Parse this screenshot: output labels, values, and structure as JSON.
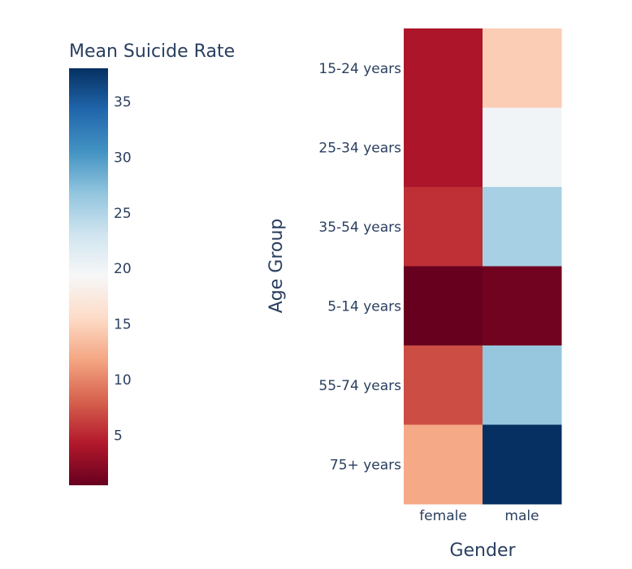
{
  "chart_data": {
    "type": "heatmap",
    "x": [
      "female",
      "male"
    ],
    "y": [
      "15-24 years",
      "25-34 years",
      "35-54 years",
      "5-14 years",
      "55-74 years",
      "75+ years"
    ],
    "z": [
      [
        4.0,
        14.5
      ],
      [
        4.0,
        19.8
      ],
      [
        5.5,
        25.5
      ],
      [
        0.5,
        1.0
      ],
      [
        7.0,
        26.5
      ],
      [
        12.0,
        38.0
      ]
    ],
    "xlabel": "Gender",
    "ylabel": "Age Group",
    "colorbar": {
      "title": "Mean Suicide Rate",
      "range": [
        0.5,
        38.0
      ],
      "ticks": [
        5,
        10,
        15,
        20,
        25,
        30,
        35
      ]
    },
    "colorscale": [
      "#67001f",
      "#b2182b",
      "#d6604d",
      "#f4a582",
      "#fddbc7",
      "#f7f7f7",
      "#d1e5f0",
      "#92c5de",
      "#4393c3",
      "#2166ac",
      "#053061"
    ]
  }
}
